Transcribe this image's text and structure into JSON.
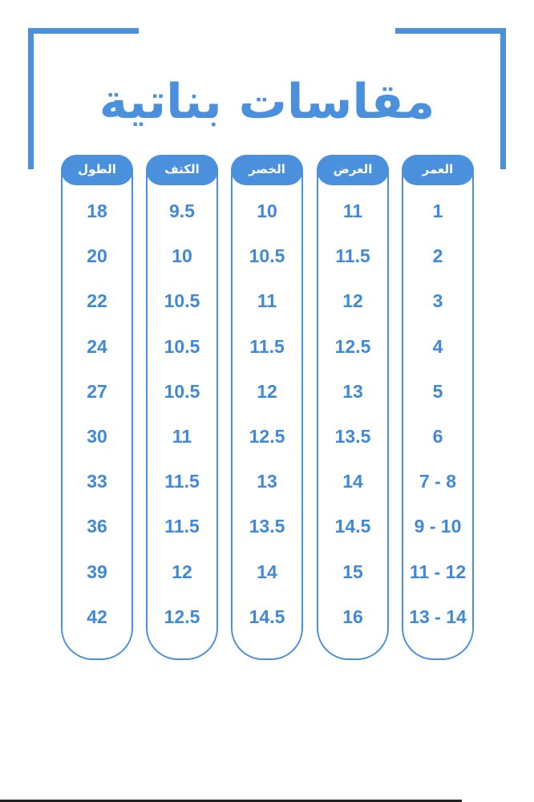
{
  "title": "مقاسات بناتية",
  "accent_color": "#4a90dc",
  "table": {
    "columns": [
      {
        "header": "الطول",
        "values": [
          "18",
          "20",
          "22",
          "24",
          "27",
          "30",
          "33",
          "36",
          "39",
          "42"
        ]
      },
      {
        "header": "الكتف",
        "values": [
          "9.5",
          "10",
          "10.5",
          "10.5",
          "10.5",
          "11",
          "11.5",
          "11.5",
          "12",
          "12.5"
        ]
      },
      {
        "header": "الخصر",
        "values": [
          "10",
          "10.5",
          "11",
          "11.5",
          "12",
          "12.5",
          "13",
          "13.5",
          "14",
          "14.5"
        ]
      },
      {
        "header": "العرض",
        "values": [
          "11",
          "11.5",
          "12",
          "12.5",
          "13",
          "13.5",
          "14",
          "14.5",
          "15",
          "16"
        ]
      },
      {
        "header": "العمر",
        "values": [
          "1",
          "2",
          "3",
          "4",
          "5",
          "6",
          "7 - 8",
          "9 - 10",
          "11 - 12",
          "13 - 14"
        ]
      }
    ]
  }
}
